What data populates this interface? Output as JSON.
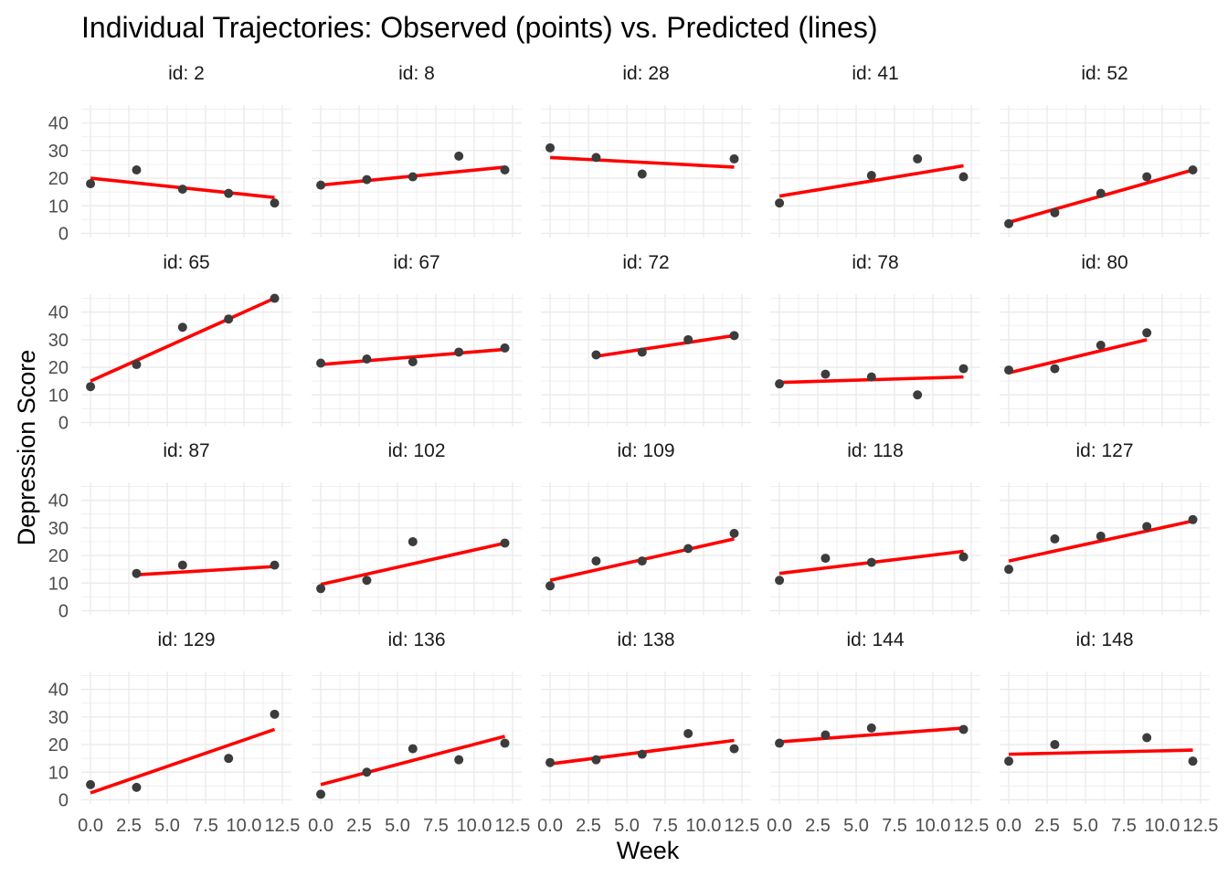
{
  "chart_data": {
    "type": "line",
    "title": "Individual Trajectories: Observed (points) vs. Predicted (lines)",
    "xlabel": "Week",
    "ylabel": "Depression Score",
    "xlim": [
      0,
      12.5
    ],
    "ylim": [
      0,
      45
    ],
    "x_ticks": [
      0,
      2.5,
      5,
      7.5,
      10,
      12.5
    ],
    "x_tick_labels": [
      "0.0",
      "2.5",
      "5.0",
      "7.5",
      "10.0",
      "12.5"
    ],
    "y_ticks": [
      0,
      10,
      20,
      30,
      40
    ],
    "y_tick_labels": [
      "0",
      "10",
      "20",
      "30",
      "40"
    ],
    "grid": true,
    "legend": "none",
    "facet_columns": 5,
    "colors": {
      "observed": "#3c3c3c",
      "predicted": "#ff0000"
    },
    "panels": [
      {
        "label": "id: 2",
        "observed": [
          [
            0,
            18
          ],
          [
            3,
            23
          ],
          [
            6,
            16
          ],
          [
            9,
            14.5
          ],
          [
            12,
            11
          ]
        ],
        "predicted": [
          [
            0,
            20
          ],
          [
            12,
            13
          ]
        ]
      },
      {
        "label": "id: 8",
        "observed": [
          [
            0,
            17.5
          ],
          [
            3,
            19.5
          ],
          [
            6,
            20.5
          ],
          [
            9,
            28
          ],
          [
            12,
            23
          ]
        ],
        "predicted": [
          [
            0,
            17.5
          ],
          [
            12,
            24
          ]
        ]
      },
      {
        "label": "id: 28",
        "observed": [
          [
            0,
            31
          ],
          [
            3,
            27.5
          ],
          [
            6,
            21.5
          ],
          [
            12,
            27
          ]
        ],
        "predicted": [
          [
            0,
            27.5
          ],
          [
            12,
            24
          ]
        ]
      },
      {
        "label": "id: 41",
        "observed": [
          [
            0,
            11
          ],
          [
            6,
            21
          ],
          [
            9,
            27
          ],
          [
            12,
            20.5
          ]
        ],
        "predicted": [
          [
            0,
            13.5
          ],
          [
            12,
            24.5
          ]
        ]
      },
      {
        "label": "id: 52",
        "observed": [
          [
            0,
            3.5
          ],
          [
            3,
            7.5
          ],
          [
            6,
            14.5
          ],
          [
            9,
            20.5
          ],
          [
            12,
            23
          ]
        ],
        "predicted": [
          [
            0,
            4
          ],
          [
            12,
            23
          ]
        ]
      },
      {
        "label": "id: 65",
        "observed": [
          [
            0,
            13
          ],
          [
            3,
            21
          ],
          [
            6,
            34.5
          ],
          [
            9,
            37.5
          ],
          [
            12,
            45
          ]
        ],
        "predicted": [
          [
            0,
            15
          ],
          [
            12,
            45
          ]
        ]
      },
      {
        "label": "id: 67",
        "observed": [
          [
            0,
            21.5
          ],
          [
            3,
            23
          ],
          [
            6,
            22
          ],
          [
            9,
            25.5
          ],
          [
            12,
            27
          ]
        ],
        "predicted": [
          [
            0,
            21
          ],
          [
            12,
            26.5
          ]
        ]
      },
      {
        "label": "id: 72",
        "observed": [
          [
            3,
            24.5
          ],
          [
            6,
            25.5
          ],
          [
            9,
            30
          ],
          [
            12,
            31.5
          ]
        ],
        "predicted": [
          [
            3,
            24
          ],
          [
            12,
            31.5
          ]
        ]
      },
      {
        "label": "id: 78",
        "observed": [
          [
            0,
            14
          ],
          [
            3,
            17.5
          ],
          [
            6,
            16.5
          ],
          [
            9,
            10
          ],
          [
            12,
            19.5
          ]
        ],
        "predicted": [
          [
            0,
            14.5
          ],
          [
            12,
            16.5
          ]
        ]
      },
      {
        "label": "id: 80",
        "observed": [
          [
            0,
            19
          ],
          [
            3,
            19.5
          ],
          [
            6,
            28
          ],
          [
            9,
            32.5
          ]
        ],
        "predicted": [
          [
            0,
            18
          ],
          [
            9,
            30
          ]
        ]
      },
      {
        "label": "id: 87",
        "observed": [
          [
            3,
            13.5
          ],
          [
            6,
            16.5
          ],
          [
            12,
            16.5
          ]
        ],
        "predicted": [
          [
            3,
            13
          ],
          [
            12,
            16
          ]
        ]
      },
      {
        "label": "id: 102",
        "observed": [
          [
            0,
            8
          ],
          [
            3,
            11
          ],
          [
            6,
            25
          ],
          [
            12,
            24.5
          ]
        ],
        "predicted": [
          [
            0,
            9.5
          ],
          [
            12,
            24.5
          ]
        ]
      },
      {
        "label": "id: 109",
        "observed": [
          [
            0,
            9
          ],
          [
            3,
            18
          ],
          [
            6,
            18
          ],
          [
            9,
            22.5
          ],
          [
            12,
            28
          ]
        ],
        "predicted": [
          [
            0,
            11
          ],
          [
            12,
            26
          ]
        ]
      },
      {
        "label": "id: 118",
        "observed": [
          [
            0,
            11
          ],
          [
            3,
            19
          ],
          [
            6,
            17.5
          ],
          [
            12,
            19.5
          ]
        ],
        "predicted": [
          [
            0,
            13.5
          ],
          [
            12,
            21.5
          ]
        ]
      },
      {
        "label": "id: 127",
        "observed": [
          [
            0,
            15
          ],
          [
            3,
            26
          ],
          [
            6,
            27
          ],
          [
            9,
            30.5
          ],
          [
            12,
            33
          ]
        ],
        "predicted": [
          [
            0,
            18
          ],
          [
            12,
            32.5
          ]
        ]
      },
      {
        "label": "id: 129",
        "observed": [
          [
            0,
            5.5
          ],
          [
            3,
            4.5
          ],
          [
            9,
            15
          ],
          [
            12,
            31
          ]
        ],
        "predicted": [
          [
            0,
            2.5
          ],
          [
            12,
            25.5
          ]
        ]
      },
      {
        "label": "id: 136",
        "observed": [
          [
            0,
            2
          ],
          [
            3,
            10
          ],
          [
            6,
            18.5
          ],
          [
            9,
            14.5
          ],
          [
            12,
            20.5
          ]
        ],
        "predicted": [
          [
            0,
            5.5
          ],
          [
            12,
            23
          ]
        ]
      },
      {
        "label": "id: 138",
        "observed": [
          [
            0,
            13.5
          ],
          [
            3,
            14.5
          ],
          [
            6,
            16.5
          ],
          [
            9,
            24
          ],
          [
            12,
            18.5
          ]
        ],
        "predicted": [
          [
            0,
            13
          ],
          [
            12,
            21.5
          ]
        ]
      },
      {
        "label": "id: 144",
        "observed": [
          [
            0,
            20.5
          ],
          [
            3,
            23.5
          ],
          [
            6,
            26
          ],
          [
            12,
            25.5
          ]
        ],
        "predicted": [
          [
            0,
            21
          ],
          [
            12,
            26
          ]
        ]
      },
      {
        "label": "id: 148",
        "observed": [
          [
            0,
            14
          ],
          [
            3,
            20
          ],
          [
            9,
            22.5
          ],
          [
            12,
            14
          ]
        ],
        "predicted": [
          [
            0,
            16.5
          ],
          [
            12,
            18
          ]
        ]
      }
    ]
  }
}
